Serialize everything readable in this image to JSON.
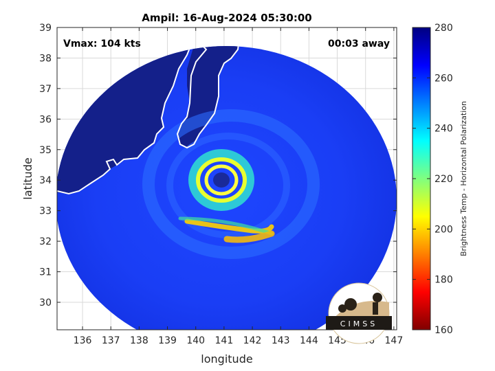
{
  "chart_data": {
    "type": "heatmap",
    "title": "Ampil: 16-Aug-2024 05:30:00",
    "xlabel": "longitude",
    "ylabel": "latitude",
    "xlim": [
      135.1,
      147.1
    ],
    "ylim": [
      29.1,
      39
    ],
    "xticks": [
      136,
      137,
      138,
      139,
      140,
      141,
      142,
      143,
      144,
      145,
      146,
      147
    ],
    "yticks": [
      30,
      31,
      32,
      33,
      34,
      35,
      36,
      37,
      38,
      39
    ],
    "grid": true,
    "storm_center": {
      "lon": 141.0,
      "lat": 34.0
    },
    "eye_radius_deg": 0.3,
    "eyewall_radius_deg": 0.55,
    "swath_radius_deg": 6.0,
    "annotations": {
      "vmax": "Vmax: 104 kts",
      "away": "00:03 away"
    },
    "colorbar": {
      "label": "Brightness Temp - Horizontal Polarization",
      "min": 160,
      "max": 280,
      "ticks": [
        280,
        260,
        240,
        220,
        200,
        180,
        160
      ],
      "colormap": "jet"
    },
    "logo_text": "CIMSS"
  }
}
